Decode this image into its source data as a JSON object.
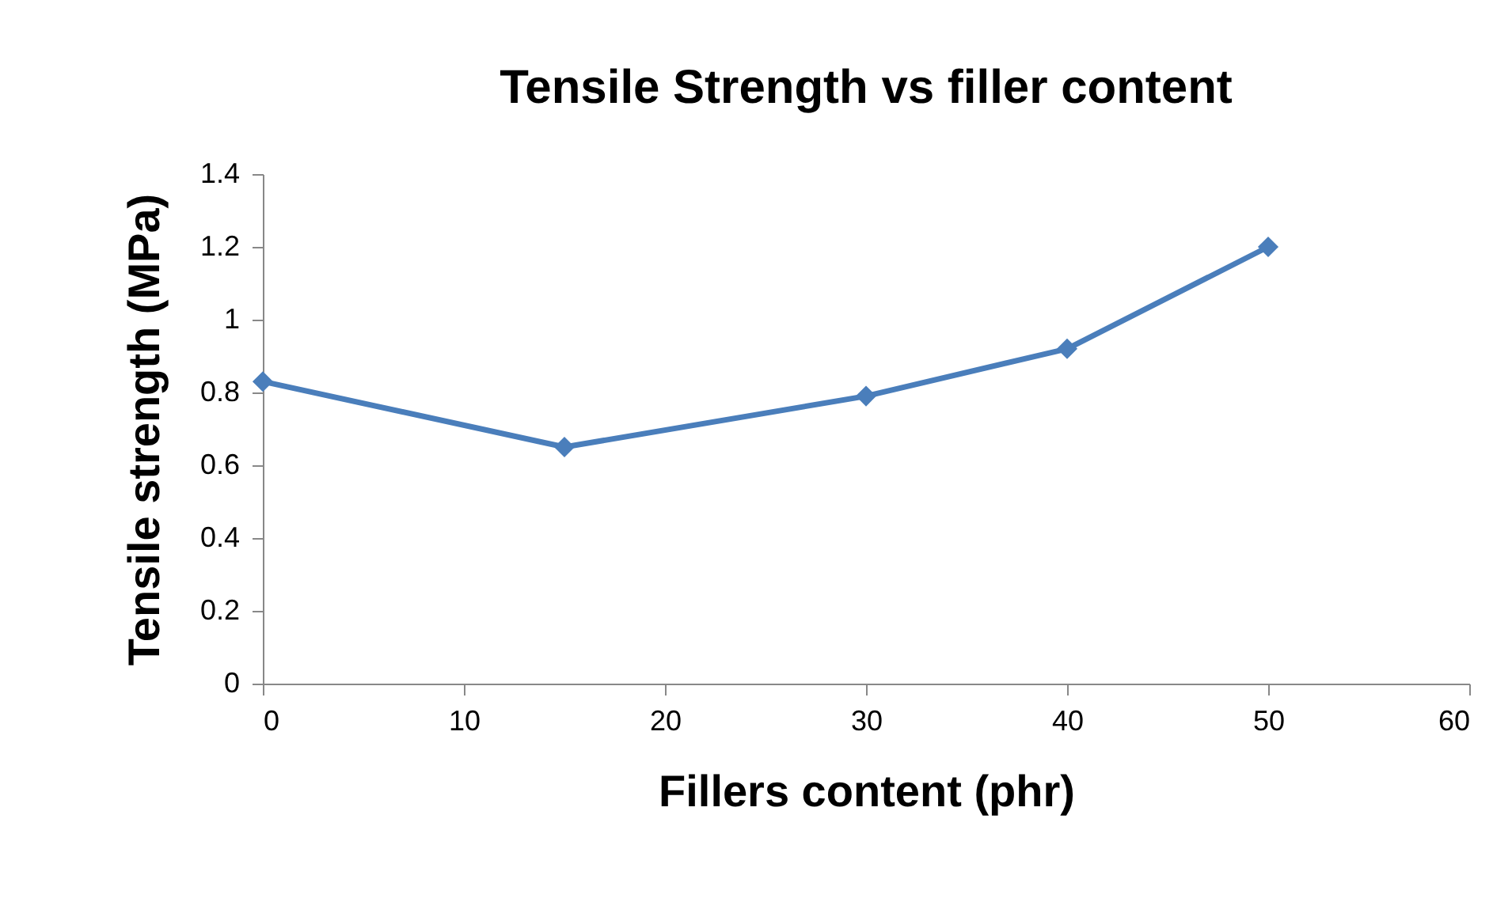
{
  "chart_data": {
    "type": "line",
    "title": "Tensile Strength vs filler content",
    "xlabel": "Fillers content (phr)",
    "ylabel": "Tensile strength (MPa)",
    "x": [
      0,
      15,
      30,
      40,
      50
    ],
    "series": [
      {
        "color": "#4a7ebb",
        "values": [
          0.83,
          0.65,
          0.79,
          0.92,
          1.2
        ]
      }
    ],
    "xlim": [
      0,
      60
    ],
    "xticks": [
      0,
      10,
      20,
      30,
      40,
      50,
      60
    ],
    "ylim": [
      0,
      1.4
    ],
    "yticks": [
      0,
      0.2,
      0.4,
      0.6,
      0.8,
      1,
      1.2,
      1.4
    ],
    "grid": false,
    "marker": "diamond",
    "line_style": "solid"
  }
}
